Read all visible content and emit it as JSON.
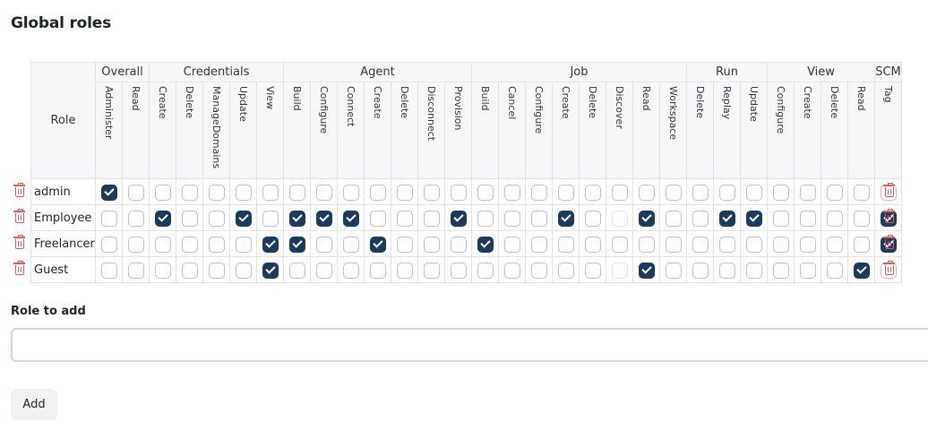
{
  "page": {
    "title": "Global roles",
    "role_to_add_label": "Role to add",
    "role_to_add_value": "",
    "add_button": "Add"
  },
  "table": {
    "role_header": "Role",
    "groups": [
      {
        "name": "Overall",
        "permissions": [
          "Administer",
          "Read"
        ]
      },
      {
        "name": "Credentials",
        "permissions": [
          "Create",
          "Delete",
          "ManageDomains",
          "Update",
          "View"
        ]
      },
      {
        "name": "Agent",
        "permissions": [
          "Build",
          "Configure",
          "Connect",
          "Create",
          "Delete",
          "Disconnect",
          "Provision"
        ]
      },
      {
        "name": "Job",
        "permissions": [
          "Build",
          "Cancel",
          "Configure",
          "Create",
          "Delete",
          "Discover",
          "Read",
          "Workspace"
        ]
      },
      {
        "name": "Run",
        "permissions": [
          "Delete",
          "Replay",
          "Update"
        ]
      },
      {
        "name": "View",
        "permissions": [
          "Configure",
          "Create",
          "Delete",
          "Read"
        ]
      },
      {
        "name": "SCM",
        "permissions": [
          "Tag"
        ]
      }
    ],
    "rows": [
      {
        "name": "admin",
        "checks": [
          1,
          0,
          0,
          0,
          0,
          0,
          0,
          0,
          0,
          0,
          0,
          0,
          0,
          0,
          0,
          0,
          0,
          0,
          0,
          0,
          0,
          0,
          0,
          0,
          0,
          0,
          0,
          0,
          0,
          0
        ]
      },
      {
        "name": "Employee",
        "checks": [
          0,
          0,
          1,
          0,
          0,
          1,
          0,
          1,
          1,
          1,
          0,
          0,
          0,
          1,
          0,
          0,
          0,
          1,
          0,
          0,
          1,
          0,
          0,
          1,
          1,
          0,
          0,
          0,
          0,
          1
        ]
      },
      {
        "name": "Freelancer",
        "checks": [
          0,
          0,
          0,
          0,
          0,
          0,
          1,
          1,
          0,
          0,
          1,
          0,
          0,
          0,
          1,
          0,
          0,
          0,
          0,
          0,
          0,
          0,
          0,
          0,
          0,
          0,
          0,
          0,
          0,
          1
        ]
      },
      {
        "name": "Guest",
        "checks": [
          0,
          0,
          0,
          0,
          0,
          0,
          1,
          0,
          0,
          0,
          0,
          0,
          0,
          0,
          0,
          0,
          0,
          0,
          0,
          0,
          1,
          0,
          0,
          0,
          0,
          0,
          0,
          0,
          1,
          0
        ]
      }
    ]
  }
}
